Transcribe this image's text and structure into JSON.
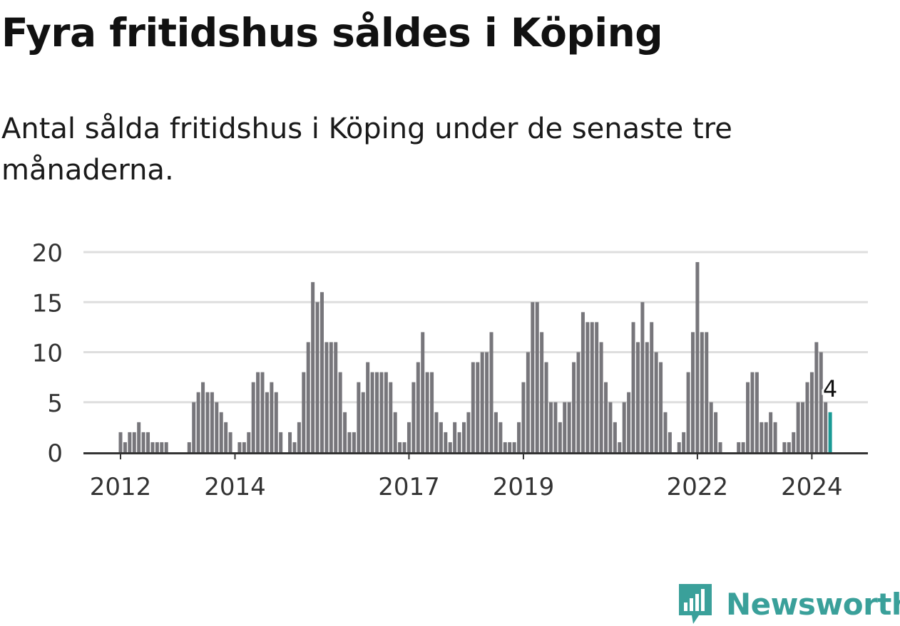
{
  "title": "Fyra fritidshus såldes i Köping",
  "subtitle": "Antal sålda fritidshus i Köping under de senaste tre månaderna.",
  "brand": {
    "name": "Newsworthy",
    "color": "#3aa09a",
    "icon": "newsworthy-logo-icon"
  },
  "colors": {
    "bar": "#77767b",
    "highlight": "#1a9a95",
    "grid": "#dedede",
    "axis": "#333333"
  },
  "chart_data": {
    "type": "bar",
    "x_start": "2011-12",
    "x_step": "month",
    "ylim": [
      0,
      20
    ],
    "yticks": [
      0,
      5,
      10,
      15,
      20
    ],
    "xticks": [
      {
        "label": "2012",
        "index": 0
      },
      {
        "label": "2014",
        "index": 25
      },
      {
        "label": "2017",
        "index": 63
      },
      {
        "label": "2019",
        "index": 88
      },
      {
        "label": "2022",
        "index": 126
      },
      {
        "label": "2024",
        "index": 151
      }
    ],
    "values": [
      2,
      1,
      2,
      2,
      3,
      2,
      2,
      1,
      1,
      1,
      1,
      0,
      0,
      0,
      0,
      1,
      5,
      6,
      7,
      6,
      6,
      5,
      4,
      3,
      2,
      0,
      1,
      1,
      2,
      7,
      8,
      8,
      6,
      7,
      6,
      2,
      0,
      2,
      1,
      3,
      8,
      11,
      17,
      15,
      16,
      11,
      11,
      11,
      8,
      4,
      2,
      2,
      7,
      6,
      9,
      8,
      8,
      8,
      8,
      7,
      4,
      1,
      1,
      3,
      7,
      9,
      12,
      8,
      8,
      4,
      3,
      2,
      1,
      3,
      2,
      3,
      4,
      9,
      9,
      10,
      10,
      12,
      4,
      3,
      1,
      1,
      1,
      3,
      7,
      10,
      15,
      15,
      12,
      9,
      5,
      5,
      3,
      5,
      5,
      9,
      10,
      14,
      13,
      13,
      13,
      11,
      7,
      5,
      3,
      1,
      5,
      6,
      13,
      11,
      15,
      11,
      13,
      10,
      9,
      4,
      2,
      0,
      1,
      2,
      8,
      12,
      19,
      12,
      12,
      5,
      4,
      1,
      0,
      0,
      0,
      1,
      1,
      7,
      8,
      8,
      3,
      3,
      4,
      3,
      0,
      1,
      1,
      2,
      5,
      5,
      7,
      8,
      11,
      10,
      5,
      4
    ],
    "highlight_label": "4"
  }
}
